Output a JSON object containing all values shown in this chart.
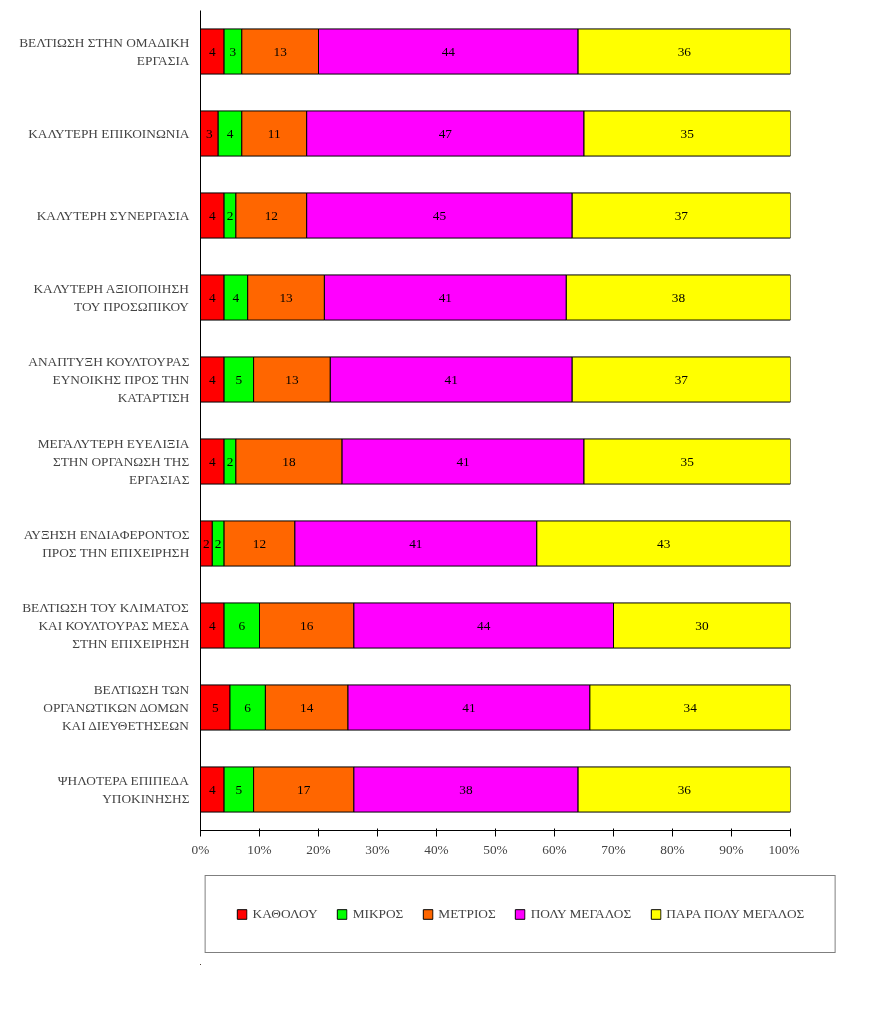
{
  "chart_data": {
    "type": "bar",
    "orientation": "horizontal",
    "stacked": true,
    "data_labels": true,
    "grid": false,
    "legend": "bottom",
    "categories": [
      "ΒΕΛΤΙΩΣΗ ΣΤΗΝ ΟΜΑΔΙΚΗ\nΕΡΓΑΣΙΑ",
      "ΚΑΛΥΤΕΡΗ ΕΠΙΚΟΙΝΩΝΙΑ",
      "ΚΑΛΥΤΕΡΗ ΣΥΝΕΡΓΑΣΙΑ",
      "ΚΑΛΥΤΕΡΗ ΑΞΙΟΠΟΙΗΣΗ\nΤΟΥ ΠΡΟΣΩΠΙΚΟΥ",
      "ΑΝΑΠΤΥΞΗ ΚΟΥΛΤΟΥΡΑΣ\nΕΥΝΟΙΚΗΣ ΠΡΟΣ ΤΗΝ\nΚΑΤΑΡΤΙΣΗ",
      "ΜΕΓΑΛΥΤΕΡΗ ΕΥΕΛΙΞΙΑ\nΣΤΗΝ ΟΡΓΑΝΩΣΗ ΤΗΣ\nΕΡΓΑΣΙΑΣ",
      "ΑΥΞΗΣΗ ΕΝΔΙΑΦΕΡΟΝΤΟΣ\nΠΡΟΣ ΤΗΝ ΕΠΙΧΕΙΡΗΣΗ",
      "ΒΕΛΤΙΩΣΗ ΤΟΥ ΚΛΙΜΑΤΟΣ\nΚΑΙ ΚΟΥΛΤΟΥΡΑΣ ΜΕΣΑ\nΣΤΗΝ ΕΠΙΧΕΙΡΗΣΗ",
      "ΒΕΛΤΙΩΣΗ ΤΩΝ\nΟΡΓΑΝΩΤΙΚΩΝ ΔΟΜΩΝ\nΚΑΙ ΔΙΕΥΘΕΤΗΣΕΩΝ",
      "ΨΗΛΟΤΕΡΑ ΕΠΙΠΕΔΑ\nΥΠΟΚΙΝΗΣΗΣ"
    ],
    "xlim": [
      0,
      100
    ],
    "xticks": [
      {
        "value": 0,
        "label": "0%"
      },
      {
        "value": 10,
        "label": "10%"
      },
      {
        "value": 20,
        "label": "20%"
      },
      {
        "value": 30,
        "label": "30%"
      },
      {
        "value": 40,
        "label": "40%"
      },
      {
        "value": 50,
        "label": "50%"
      },
      {
        "value": 60,
        "label": "60%"
      },
      {
        "value": 70,
        "label": "70%"
      },
      {
        "value": 80,
        "label": "80%"
      },
      {
        "value": 90,
        "label": "90%"
      },
      {
        "value": 100,
        "label": "100%"
      }
    ],
    "series": [
      {
        "name": "ΚΑΘΟΛΟΥ",
        "color": "#ff0000",
        "values": [
          4,
          3,
          4,
          4,
          4,
          4,
          2,
          4,
          5,
          4
        ]
      },
      {
        "name": "ΜΙΚΡΟΣ",
        "color": "#00ff00",
        "values": [
          3,
          4,
          2,
          4,
          5,
          2,
          2,
          6,
          6,
          5
        ]
      },
      {
        "name": "ΜΕΤΡΙΟΣ",
        "color": "#ff6600",
        "values": [
          13,
          11,
          12,
          13,
          13,
          18,
          12,
          16,
          14,
          17
        ]
      },
      {
        "name": "ΠΟΛΥ ΜΕΓΑΛΟΣ",
        "color": "#ff00ff",
        "values": [
          44,
          47,
          45,
          41,
          41,
          41,
          41,
          44,
          41,
          38
        ]
      },
      {
        "name": "ΠΑΡΑ ΠΟΛΥ ΜΕΓΑΛΟΣ",
        "color": "#ffff00",
        "values": [
          36,
          35,
          37,
          38,
          37,
          35,
          43,
          30,
          34,
          36
        ]
      }
    ]
  }
}
